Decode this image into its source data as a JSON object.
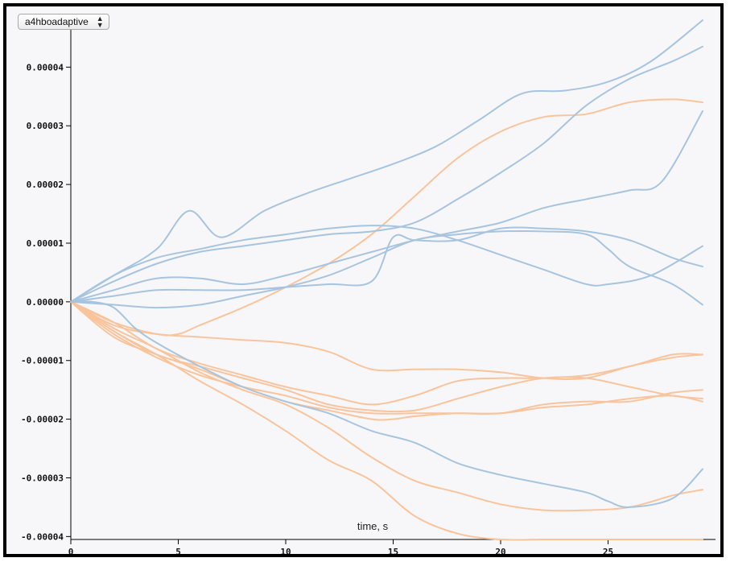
{
  "control": {
    "selected": "a4hboadaptive",
    "icon": "updown-chevron-icon"
  },
  "chart_data": {
    "type": "line",
    "title": "",
    "xlabel": "time, s",
    "ylabel": "",
    "xlim": [
      0,
      30
    ],
    "ylim": [
      -4.05e-05,
      4.65e-05
    ],
    "xticks": [
      0,
      5,
      10,
      15,
      20,
      25
    ],
    "yticks": [
      -4e-05,
      -3e-05,
      -2e-05,
      -1e-05,
      0,
      1e-05,
      2e-05,
      3e-05,
      4e-05
    ],
    "ytick_labels": [
      "-0.00004",
      "-0.00003",
      "-0.00002",
      "-0.00001",
      "0.00000",
      "0.00001",
      "0.00002",
      "0.00003",
      "0.00004"
    ],
    "grid": false,
    "colors": {
      "blue": "#a7c4df",
      "orange": "#f9c49c"
    },
    "series": [
      {
        "color": "blue",
        "x": [
          0,
          2,
          4,
          5.5,
          7,
          9,
          11,
          13,
          15,
          17,
          19,
          21,
          23,
          25,
          27,
          29.4
        ],
        "y": [
          0,
          4.5e-06,
          9e-06,
          1.55e-05,
          1.1e-05,
          1.55e-05,
          1.85e-05,
          2.1e-05,
          2.35e-05,
          2.65e-05,
          3.1e-05,
          3.55e-05,
          3.6e-05,
          3.75e-05,
          4.1e-05,
          4.8e-05
        ]
      },
      {
        "color": "blue",
        "x": [
          0,
          2,
          4,
          6,
          8,
          10,
          12,
          14,
          16,
          18,
          20,
          22,
          24,
          26,
          28,
          29.4
        ],
        "y": [
          0,
          3.5e-06,
          6.5e-06,
          8.5e-06,
          9.5e-06,
          1.05e-05,
          1.15e-05,
          1.2e-05,
          1.35e-05,
          1.75e-05,
          2.2e-05,
          2.7e-05,
          3.35e-05,
          3.8e-05,
          4.1e-05,
          4.35e-05
        ]
      },
      {
        "color": "blue",
        "x": [
          0,
          2,
          4,
          6,
          8,
          10,
          12,
          14,
          16,
          18,
          20,
          22,
          24,
          26,
          27.5,
          29.4
        ],
        "y": [
          0,
          2e-06,
          4e-06,
          4e-06,
          3e-06,
          4.5e-06,
          6.5e-06,
          8.5e-06,
          1.05e-05,
          1.2e-05,
          1.35e-05,
          1.6e-05,
          1.75e-05,
          1.9e-05,
          2.05e-05,
          3.25e-05
        ]
      },
      {
        "color": "blue",
        "x": [
          0,
          2,
          4,
          6,
          8,
          10,
          12,
          14,
          16,
          18,
          20,
          22,
          24,
          25,
          27,
          29.4
        ],
        "y": [
          0,
          4.5e-06,
          7.5e-06,
          9e-06,
          1.05e-05,
          1.15e-05,
          1.25e-05,
          1.3e-05,
          1.25e-05,
          1.05e-05,
          8e-06,
          5.5e-06,
          3e-06,
          3e-06,
          4.5e-06,
          9.5e-06
        ]
      },
      {
        "color": "blue",
        "x": [
          0,
          2,
          4,
          6,
          8,
          10,
          12,
          14,
          15,
          16,
          18,
          20,
          22,
          24,
          26,
          28,
          29.4
        ],
        "y": [
          0,
          1e-06,
          2e-06,
          2e-06,
          2e-06,
          2.5e-06,
          3e-06,
          3.5e-06,
          1.1e-05,
          1.05e-05,
          1.05e-05,
          1.25e-05,
          1.25e-05,
          1.2e-05,
          1.05e-05,
          7.5e-06,
          6e-06
        ]
      },
      {
        "color": "blue",
        "x": [
          0,
          2,
          4,
          6,
          8,
          10,
          12,
          14,
          16,
          18,
          20,
          22,
          24,
          25,
          26,
          28,
          29.4
        ],
        "y": [
          0,
          -5e-07,
          -1e-06,
          -5e-07,
          1e-06,
          2.5e-06,
          4.5e-06,
          7.5e-06,
          1.05e-05,
          1.15e-05,
          1.2e-05,
          1.2e-05,
          1.15e-05,
          9e-06,
          6e-06,
          3e-06,
          -5e-07
        ]
      },
      {
        "color": "blue",
        "x": [
          0,
          1,
          2,
          3,
          4,
          6,
          8,
          10,
          12,
          14,
          16,
          18,
          20,
          22,
          24,
          25,
          26,
          28,
          29.4
        ],
        "y": [
          0,
          0,
          -1e-06,
          -4.5e-06,
          -7e-06,
          -1.1e-05,
          -1.45e-05,
          -1.7e-05,
          -1.9e-05,
          -2.2e-05,
          -2.4e-05,
          -2.75e-05,
          -2.95e-05,
          -3.1e-05,
          -3.25e-05,
          -3.4e-05,
          -3.5e-05,
          -3.35e-05,
          -2.85e-05
        ]
      },
      {
        "color": "orange",
        "x": [
          0,
          2,
          4,
          5,
          6,
          8,
          10,
          12,
          14,
          16,
          18,
          20,
          22,
          24,
          26,
          28,
          29.4
        ],
        "y": [
          0,
          -3.5e-06,
          -5.5e-06,
          -5.5e-06,
          -4e-06,
          -1e-06,
          2.5e-06,
          6.5e-06,
          1.15e-05,
          1.8e-05,
          2.45e-05,
          2.9e-05,
          3.15e-05,
          3.2e-05,
          3.4e-05,
          3.45e-05,
          3.4e-05
        ]
      },
      {
        "color": "orange",
        "x": [
          0,
          2,
          4,
          6,
          8,
          10,
          12,
          14,
          16,
          18,
          20,
          22,
          24,
          26,
          28,
          29.4
        ],
        "y": [
          0,
          -4e-06,
          -5.5e-06,
          -6e-06,
          -6.5e-06,
          -7e-06,
          -8.5e-06,
          -1.15e-05,
          -1.15e-05,
          -1.15e-05,
          -1.2e-05,
          -1.3e-05,
          -1.3e-05,
          -1.1e-05,
          -9.5e-06,
          -9e-06
        ]
      },
      {
        "color": "orange",
        "x": [
          0,
          2,
          4,
          6,
          8,
          10,
          12,
          14,
          16,
          18,
          20,
          22,
          24,
          26,
          28,
          29.4
        ],
        "y": [
          0,
          -3.5e-06,
          -8e-06,
          -1.05e-05,
          -1.25e-05,
          -1.45e-05,
          -1.6e-05,
          -1.75e-05,
          -1.6e-05,
          -1.35e-05,
          -1.3e-05,
          -1.3e-05,
          -1.25e-05,
          -1.1e-05,
          -9e-06,
          -9e-06
        ]
      },
      {
        "color": "orange",
        "x": [
          0,
          2,
          4,
          6,
          8,
          10,
          12,
          14,
          16,
          18,
          20,
          22,
          24,
          26,
          28,
          29.4
        ],
        "y": [
          0,
          -5e-06,
          -9e-06,
          -1.1e-05,
          -1.3e-05,
          -1.5e-05,
          -1.75e-05,
          -1.85e-05,
          -1.85e-05,
          -1.65e-05,
          -1.45e-05,
          -1.3e-05,
          -1.3e-05,
          -1.45e-05,
          -1.6e-05,
          -1.65e-05
        ]
      },
      {
        "color": "orange",
        "x": [
          0,
          2,
          4,
          6,
          8,
          10,
          12,
          14,
          16,
          18,
          20,
          22,
          24,
          26,
          28,
          29.4
        ],
        "y": [
          0,
          -5.5e-06,
          -9.5e-06,
          -1.25e-05,
          -1.45e-05,
          -1.6e-05,
          -1.8e-05,
          -1.9e-05,
          -1.9e-05,
          -1.9e-05,
          -1.9e-05,
          -1.75e-05,
          -1.7e-05,
          -1.7e-05,
          -1.55e-05,
          -1.5e-05
        ]
      },
      {
        "color": "orange",
        "x": [
          0,
          2,
          4,
          6,
          8,
          10,
          12,
          14,
          15,
          16,
          18,
          20,
          22,
          24,
          26,
          28,
          29.4
        ],
        "y": [
          0,
          -6e-06,
          -9e-06,
          -1.15e-05,
          -1.45e-05,
          -1.7e-05,
          -1.85e-05,
          -2e-05,
          -2e-05,
          -1.95e-05,
          -1.9e-05,
          -1.9e-05,
          -1.8e-05,
          -1.75e-05,
          -1.65e-05,
          -1.6e-05,
          -1.7e-05
        ]
      },
      {
        "color": "orange",
        "x": [
          0,
          2,
          4,
          6,
          8,
          10,
          12,
          14,
          16,
          18,
          20,
          22,
          24,
          26,
          28,
          29.4
        ],
        "y": [
          0,
          -4.5e-06,
          -8e-06,
          -1.2e-05,
          -1.5e-05,
          -1.75e-05,
          -2.15e-05,
          -2.65e-05,
          -3.05e-05,
          -3.25e-05,
          -3.45e-05,
          -3.55e-05,
          -3.55e-05,
          -3.5e-05,
          -3.3e-05,
          -3.2e-05
        ]
      },
      {
        "color": "orange",
        "x": [
          0,
          2,
          4,
          6,
          8,
          10,
          12,
          14,
          16,
          18,
          20,
          22,
          24,
          26,
          28,
          29.4
        ],
        "y": [
          0,
          -5e-06,
          -9e-06,
          -1.35e-05,
          -1.75e-05,
          -2.2e-05,
          -2.7e-05,
          -3.05e-05,
          -3.65e-05,
          -3.95e-05,
          -4.05e-05,
          -4.05e-05,
          -4.05e-05,
          -4.05e-05,
          -4.05e-05,
          -4.05e-05
        ]
      }
    ]
  }
}
